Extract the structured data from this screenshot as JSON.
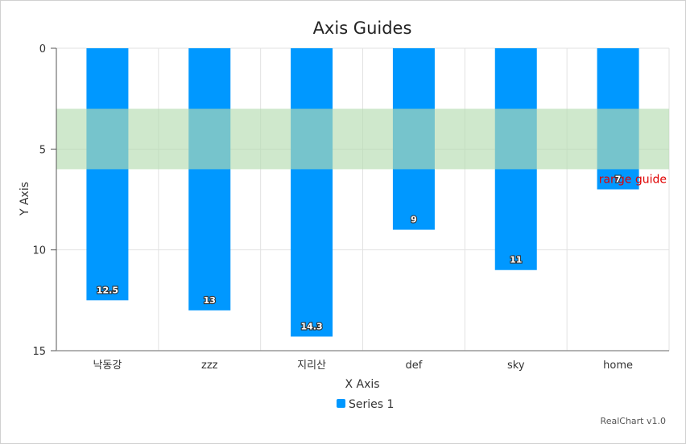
{
  "chart_data": {
    "type": "bar",
    "title": "Axis Guides",
    "xlabel": "X Axis",
    "ylabel": "Y Axis",
    "categories": [
      "낙동강",
      "zzz",
      "지리산",
      "def",
      "sky",
      "home"
    ],
    "series": [
      {
        "name": "Series 1",
        "values": [
          12.5,
          13,
          14.3,
          9,
          11,
          7
        ],
        "color": "#0098ff"
      }
    ],
    "ylim": [
      0,
      15
    ],
    "yticks": [
      0,
      5,
      10,
      15
    ],
    "y_reversed": true,
    "grid": true,
    "legend": "bottom",
    "guides": [
      {
        "type": "range",
        "from": 3,
        "to": 6,
        "label": "range guide",
        "fill": "#b5dcb0",
        "label_color": "#e00000"
      }
    ]
  },
  "credit": "RealChart v1.0"
}
